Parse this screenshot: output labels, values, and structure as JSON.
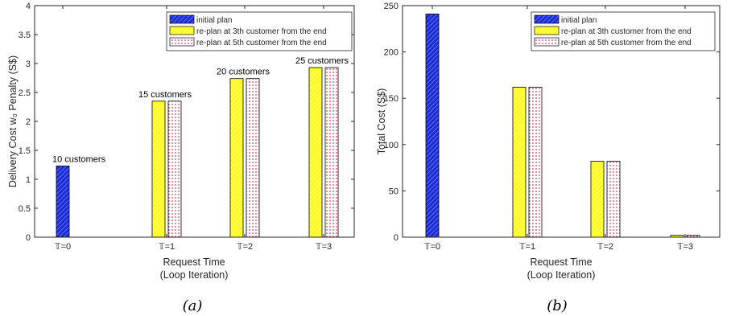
{
  "figure": {
    "captions": [
      "(a)",
      "(b)"
    ]
  },
  "colors": {
    "initial": "#1b2bd9",
    "replan3": "#ffff3c",
    "replan5_dots": "#d9001a",
    "axis": "#262626"
  },
  "chart_data": [
    {
      "type": "bar",
      "categories": [
        "𝕋=0",
        "𝕋=1",
        "𝕋=2",
        "𝕋=3"
      ],
      "series": [
        {
          "name": "initial plan",
          "values": [
            1.23,
            0,
            0,
            0
          ]
        },
        {
          "name": "re-plan at 3th customer from the end",
          "values": [
            0,
            2.35,
            2.74,
            2.93
          ]
        },
        {
          "name": "re-plan at 5th customer from the end",
          "values": [
            0,
            2.35,
            2.74,
            2.93
          ]
        }
      ],
      "annotations": [
        "10 customers",
        "15 customers",
        "20 customers",
        "25 customers"
      ],
      "xlabel": [
        "Request Time",
        "(Loop Iteration)"
      ],
      "ylabel": "Delivery Cost w₀ Penalty (S$)",
      "ylim": [
        0,
        4
      ],
      "yticks": [
        "0",
        "0.5",
        "1",
        "1.5",
        "2",
        "2.5",
        "3",
        "3.5",
        "4"
      ],
      "legend_position": "top-right",
      "grid": false
    },
    {
      "type": "bar",
      "categories": [
        "𝕋=0",
        "𝕋=1",
        "𝕋=2",
        "𝕋=3"
      ],
      "series": [
        {
          "name": "initial plan",
          "values": [
            241,
            0,
            0,
            0
          ]
        },
        {
          "name": "re-plan at 3th customer from the end",
          "values": [
            0,
            162,
            82,
            2
          ]
        },
        {
          "name": "re-plan at 5th customer from the end",
          "values": [
            0,
            162,
            82,
            2
          ]
        }
      ],
      "xlabel": [
        "Request Time",
        "(Loop Iteration)"
      ],
      "ylabel": "Total Cost (S$)",
      "ylim": [
        0,
        250
      ],
      "yticks": [
        "0",
        "50",
        "100",
        "150",
        "200",
        "250"
      ],
      "legend_position": "top-right",
      "grid": false
    }
  ]
}
